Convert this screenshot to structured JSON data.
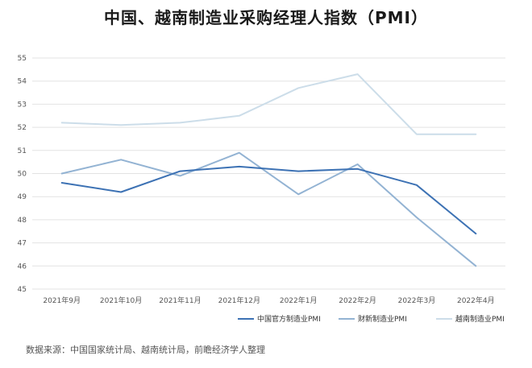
{
  "chart_data": {
    "type": "line",
    "title": "中国、越南制造业采购经理人指数（PMI）",
    "categories": [
      "2021年9月",
      "2021年10月",
      "2021年11月",
      "2021年12月",
      "2022年1月",
      "2022年2月",
      "2022年3月",
      "2022年4月"
    ],
    "y_ticks": [
      "45",
      "46",
      "47",
      "48",
      "49",
      "50",
      "51",
      "52",
      "53",
      "54",
      "55"
    ],
    "ylim": [
      45,
      55
    ],
    "grid": true,
    "legend_position": "bottom-right",
    "series": [
      {
        "name": "中国官方制造业PMI",
        "color": "#3d72b4",
        "values": [
          49.6,
          49.2,
          50.1,
          50.3,
          50.1,
          50.2,
          49.5,
          47.4
        ]
      },
      {
        "name": "财新制造业PMI",
        "color": "#93b3d3",
        "values": [
          50.0,
          50.6,
          49.9,
          50.9,
          49.1,
          50.4,
          48.1,
          46.0
        ]
      },
      {
        "name": "越南制造业PMI",
        "color": "#ccdde9",
        "values": [
          52.2,
          52.1,
          52.2,
          52.5,
          53.7,
          54.3,
          51.7,
          51.7
        ]
      }
    ]
  },
  "source_note": "数据来源：中国国家统计局、越南统计局，前瞻经济学人整理"
}
